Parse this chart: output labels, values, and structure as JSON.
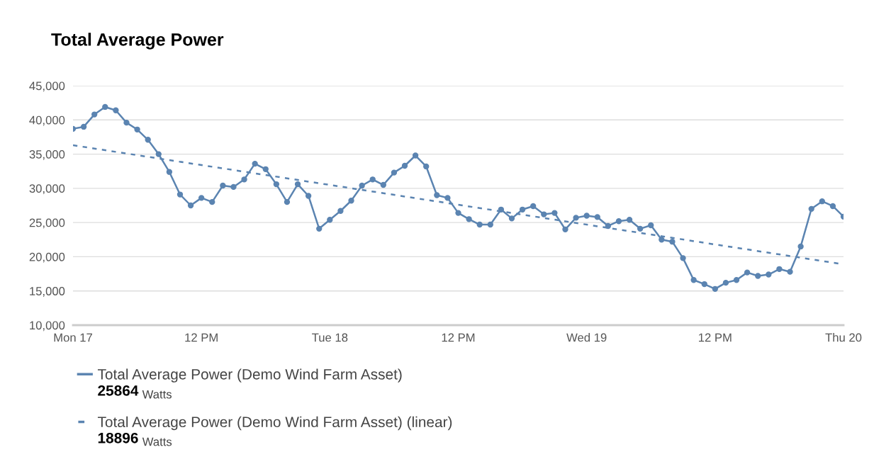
{
  "chart_data": {
    "type": "line",
    "title": "Total Average Power",
    "categories": [
      "Mon 17",
      null,
      null,
      null,
      null,
      null,
      null,
      null,
      null,
      null,
      null,
      null,
      "12 PM",
      null,
      null,
      null,
      null,
      null,
      null,
      null,
      null,
      null,
      null,
      null,
      "Tue 18",
      null,
      null,
      null,
      null,
      null,
      null,
      null,
      null,
      null,
      null,
      null,
      "12 PM",
      null,
      null,
      null,
      null,
      null,
      null,
      null,
      null,
      null,
      null,
      null,
      "Wed 19",
      null,
      null,
      null,
      null,
      null,
      null,
      null,
      null,
      null,
      null,
      null,
      "12 PM",
      null,
      null,
      null,
      null,
      null,
      null,
      null,
      null,
      null,
      null,
      null,
      "Thu 20"
    ],
    "series": [
      {
        "name": "Total Average Power (Demo Wind Farm Asset)",
        "color": "#5b84b1",
        "marker": "circle",
        "line_style": "solid",
        "values": [
          38700,
          39000,
          40800,
          41900,
          41400,
          39600,
          38600,
          37100,
          35000,
          32400,
          29100,
          27500,
          28600,
          28000,
          30400,
          30200,
          31300,
          33600,
          32800,
          30600,
          28000,
          30600,
          28900,
          24100,
          25400,
          26700,
          28200,
          30400,
          31300,
          30500,
          32300,
          33300,
          34800,
          33200,
          29000,
          28600,
          26400,
          25500,
          24700,
          24700,
          26900,
          25600,
          26900,
          27400,
          26200,
          26400,
          24000,
          25700,
          26000,
          25800,
          24500,
          25200,
          25400,
          24100,
          24600,
          22500,
          22200,
          19800,
          16600,
          16000,
          15300,
          16200,
          16600,
          17700,
          17200,
          17400,
          18200,
          17800,
          21500,
          27000,
          28100,
          27400,
          25864
        ]
      },
      {
        "name": "Total Average Power (Demo Wind Farm Asset) (linear)",
        "color": "#5b84b1",
        "type": "line",
        "marker": "none",
        "line_style": "dashed",
        "values": [
          36300,
          null,
          null,
          null,
          null,
          null,
          null,
          null,
          null,
          null,
          null,
          null,
          null,
          null,
          null,
          null,
          null,
          null,
          null,
          null,
          null,
          null,
          null,
          null,
          null,
          null,
          null,
          null,
          null,
          null,
          null,
          null,
          null,
          null,
          null,
          null,
          null,
          null,
          null,
          null,
          null,
          null,
          null,
          null,
          null,
          null,
          null,
          null,
          null,
          null,
          null,
          null,
          null,
          null,
          null,
          null,
          null,
          null,
          null,
          null,
          null,
          null,
          null,
          null,
          null,
          null,
          null,
          null,
          null,
          null,
          null,
          null,
          18896
        ]
      }
    ],
    "ylim": [
      10000,
      45000
    ],
    "yticks": [
      {
        "value": 10000,
        "label": "10,000"
      },
      {
        "value": 15000,
        "label": "15,000"
      },
      {
        "value": 20000,
        "label": "20,000"
      },
      {
        "value": 25000,
        "label": "25,000"
      },
      {
        "value": 30000,
        "label": "30,000"
      },
      {
        "value": 35000,
        "label": "35,000"
      },
      {
        "value": 40000,
        "label": "40,000"
      },
      {
        "value": 45000,
        "label": "45,000"
      }
    ],
    "grid": "y",
    "legend": "bottom",
    "annotations": [
      "25864",
      "Watts",
      "18896",
      "Watts"
    ]
  }
}
